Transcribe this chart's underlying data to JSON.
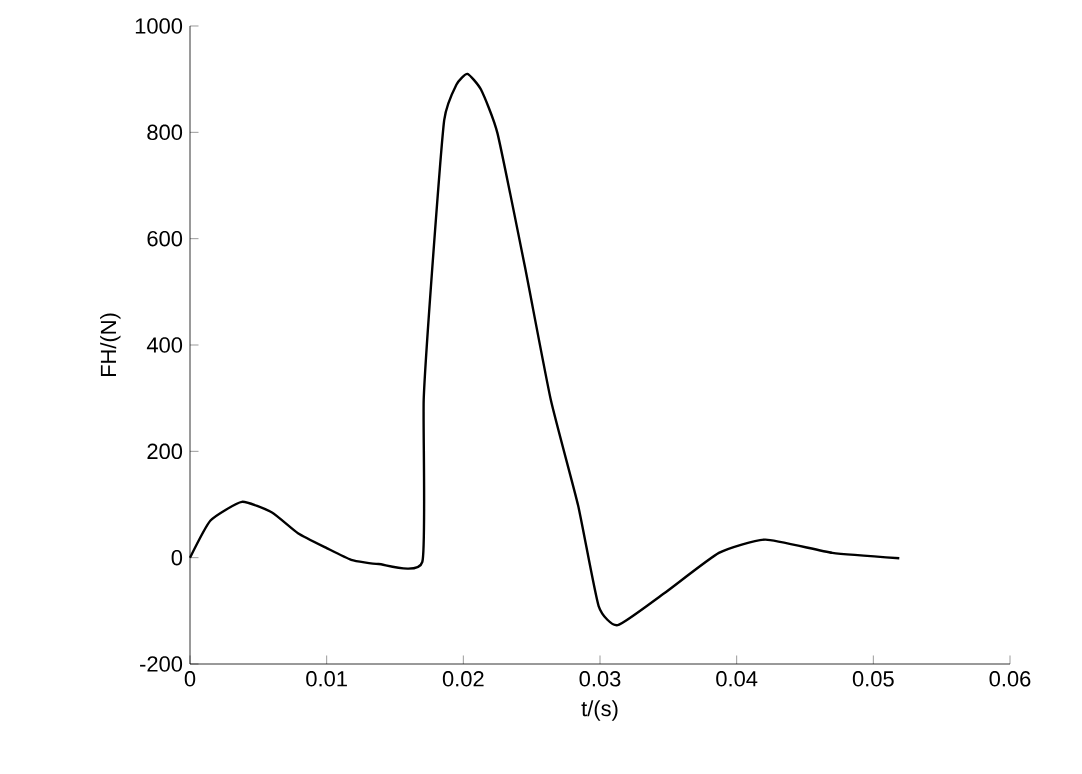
{
  "chart_data": {
    "type": "line",
    "xlabel": "t/(s)",
    "ylabel": "FH/(N)",
    "color": "#000000",
    "x": [
      0,
      0.0015,
      0.0038,
      0.006,
      0.0079,
      0.01,
      0.0118,
      0.0138,
      0.017,
      0.0171,
      0.0177,
      0.0186,
      0.0195,
      0.0203,
      0.0213,
      0.0225,
      0.0245,
      0.0264,
      0.0284,
      0.0299,
      0.0313,
      0.0347,
      0.0387,
      0.0421,
      0.047,
      0.0519
    ],
    "values": [
      0,
      70,
      105,
      85,
      46,
      18,
      -4,
      -12,
      -8,
      297,
      535,
      823,
      890,
      910,
      880,
      798,
      548,
      297,
      98,
      -91,
      -127,
      -67,
      9,
      34,
      9,
      -1
    ],
    "xlim": [
      0,
      0.06
    ],
    "ylim": [
      -200,
      1000
    ],
    "xticks": [
      0,
      0.01,
      0.02,
      0.03,
      0.04,
      0.05,
      0.06
    ],
    "yticks": [
      -200,
      0,
      200,
      400,
      600,
      800,
      1000
    ],
    "grid": false,
    "line_style": "solid"
  }
}
